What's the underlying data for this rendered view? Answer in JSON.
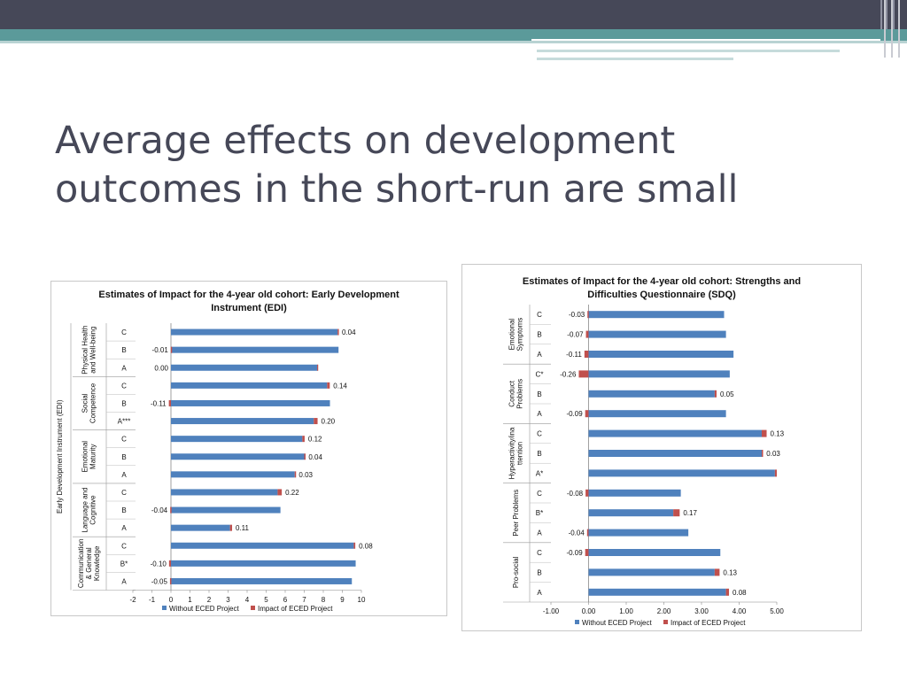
{
  "slide": {
    "title_line1": "Average effects on development",
    "title_line2": "outcomes in the short-run are small"
  },
  "colors": {
    "header_dark": "#464858",
    "header_teal": "#5b9a9a",
    "bar_base": "#4f81bd",
    "bar_impact": "#c0504d",
    "title_text": "#464858"
  },
  "chart_data": [
    {
      "type": "bar",
      "orientation": "horizontal",
      "stacked": true,
      "title_line1": "Estimates of Impact for the 4-year old cohort: Early Development",
      "title_line2": "Instrument (EDI)",
      "ylabel": "Early Development Instrument (EDI)",
      "xlim": [
        -2,
        10
      ],
      "xticks": [
        "-2",
        "-1",
        "0",
        "1",
        "2",
        "3",
        "4",
        "5",
        "6",
        "7",
        "8",
        "9",
        "10"
      ],
      "legend_position": "bottom",
      "series": [
        {
          "name": "Without ECED Project",
          "color": "#4f81bd"
        },
        {
          "name": "Impact of ECED Project",
          "color": "#c0504d"
        }
      ],
      "groups": [
        {
          "name_lines": [
            "Physical Health",
            "and Well-being"
          ],
          "rows": [
            {
              "label": "C",
              "base": 8.75,
              "impact": 0.04,
              "impact_label": "0.04"
            },
            {
              "label": "B",
              "base": 8.8,
              "impact": -0.01,
              "impact_label": "-0.01"
            },
            {
              "label": "A",
              "base": 7.7,
              "impact": 0.0,
              "impact_label": "0.00"
            }
          ]
        },
        {
          "name_lines": [
            "Social",
            "Competence"
          ],
          "rows": [
            {
              "label": "C",
              "base": 8.2,
              "impact": 0.14,
              "impact_label": "0.14"
            },
            {
              "label": "B",
              "base": 8.35,
              "impact": -0.11,
              "impact_label": "-0.11"
            },
            {
              "label": "A***",
              "base": 7.5,
              "impact": 0.2,
              "impact_label": "0.20"
            }
          ]
        },
        {
          "name_lines": [
            "Emotional",
            "Maturity"
          ],
          "rows": [
            {
              "label": "C",
              "base": 6.9,
              "impact": 0.12,
              "impact_label": "0.12"
            },
            {
              "label": "B",
              "base": 7.0,
              "impact": 0.04,
              "impact_label": "0.04"
            },
            {
              "label": "A",
              "base": 6.5,
              "impact": 0.03,
              "impact_label": "0.03"
            }
          ]
        },
        {
          "name_lines": [
            "Language and",
            "Cognitive"
          ],
          "rows": [
            {
              "label": "C",
              "base": 5.6,
              "impact": 0.22,
              "impact_label": "0.22"
            },
            {
              "label": "B",
              "base": 5.75,
              "impact": -0.04,
              "impact_label": "-0.04"
            },
            {
              "label": "A",
              "base": 3.1,
              "impact": 0.11,
              "impact_label": "0.11"
            }
          ]
        },
        {
          "name_lines": [
            "Communication",
            "& General",
            "Knowledge"
          ],
          "rows": [
            {
              "label": "C",
              "base": 9.6,
              "impact": 0.08,
              "impact_label": "0.08"
            },
            {
              "label": "B*",
              "base": 9.7,
              "impact": -0.1,
              "impact_label": "-0.10"
            },
            {
              "label": "A",
              "base": 9.5,
              "impact": -0.05,
              "impact_label": "-0.05"
            }
          ]
        }
      ]
    },
    {
      "type": "bar",
      "orientation": "horizontal",
      "stacked": true,
      "title_line1": "Estimates of Impact for the 4-year old cohort: Strengths and",
      "title_line2": "Difficulties Questionnaire (SDQ)",
      "xlim": [
        -1,
        5
      ],
      "xticks": [
        "-1.00",
        "0.00",
        "1.00",
        "2.00",
        "3.00",
        "4.00",
        "5.00"
      ],
      "legend_position": "bottom",
      "series": [
        {
          "name": "Without ECED Project",
          "color": "#4f81bd"
        },
        {
          "name": "Impact of ECED Project",
          "color": "#c0504d"
        }
      ],
      "groups": [
        {
          "name_lines": [
            "Emotional",
            "Symptoms"
          ],
          "rows": [
            {
              "label": "C",
              "base": 3.6,
              "impact": -0.03,
              "impact_label": "-0.03"
            },
            {
              "label": "B",
              "base": 3.65,
              "impact": -0.07,
              "impact_label": "-0.07"
            },
            {
              "label": "A",
              "base": 3.85,
              "impact": -0.11,
              "impact_label": "-0.11"
            }
          ]
        },
        {
          "name_lines": [
            "Conduct",
            "Problems"
          ],
          "rows": [
            {
              "label": "C*",
              "base": 3.75,
              "impact": -0.26,
              "impact_label": "-0.26"
            },
            {
              "label": "B",
              "base": 3.35,
              "impact": 0.05,
              "impact_label": "0.05"
            },
            {
              "label": "A",
              "base": 3.65,
              "impact": -0.09,
              "impact_label": "-0.09"
            }
          ]
        },
        {
          "name_lines": [
            "Hyperactivity/ina",
            "ttention"
          ],
          "rows": [
            {
              "label": "C",
              "base": 4.6,
              "impact": 0.13,
              "impact_label": "0.13"
            },
            {
              "label": "B",
              "base": 4.6,
              "impact": 0.03,
              "impact_label": "0.03"
            },
            {
              "label": "A*",
              "base": 4.95,
              "impact": 0.05,
              "impact_label": ""
            }
          ]
        },
        {
          "name_lines": [
            "Peer Problems"
          ],
          "rows": [
            {
              "label": "C",
              "base": 2.45,
              "impact": -0.08,
              "impact_label": "-0.08"
            },
            {
              "label": "B*",
              "base": 2.25,
              "impact": 0.17,
              "impact_label": "0.17"
            },
            {
              "label": "A",
              "base": 2.65,
              "impact": -0.04,
              "impact_label": "-0.04"
            }
          ]
        },
        {
          "name_lines": [
            "Pro-social"
          ],
          "rows": [
            {
              "label": "C",
              "base": 3.5,
              "impact": -0.09,
              "impact_label": "-0.09"
            },
            {
              "label": "B",
              "base": 3.35,
              "impact": 0.13,
              "impact_label": "0.13"
            },
            {
              "label": "A",
              "base": 3.65,
              "impact": 0.08,
              "impact_label": "0.08"
            }
          ]
        }
      ]
    }
  ]
}
